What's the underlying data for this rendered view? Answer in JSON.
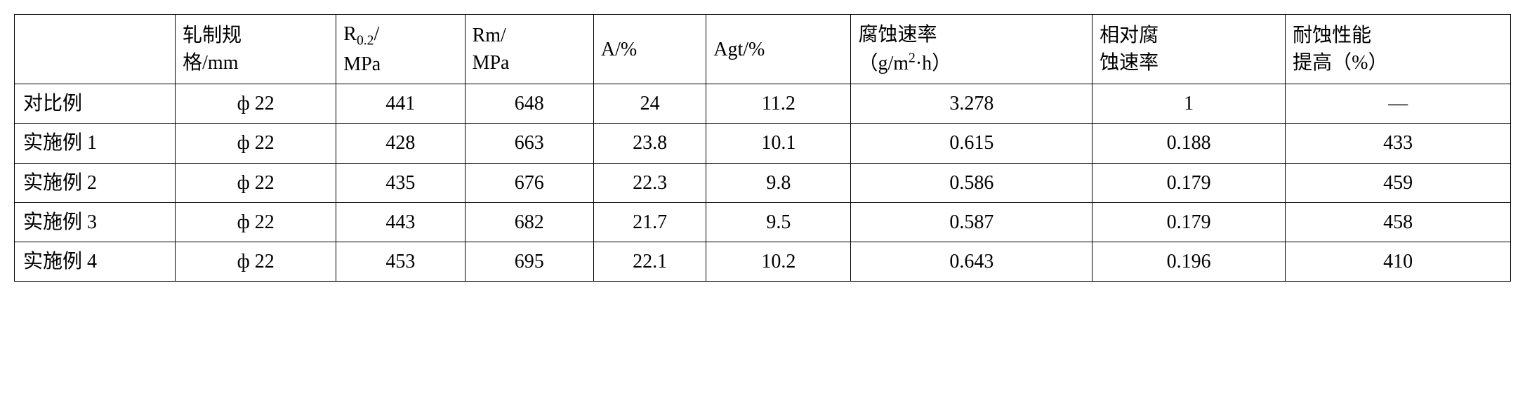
{
  "table": {
    "type": "table",
    "background_color": "#ffffff",
    "border_color": "#000000",
    "border_width": 1.5,
    "font_size": 28,
    "font_family": "SimSun",
    "columns": [
      {
        "key": "label",
        "header": "",
        "width_pct": 10,
        "align": "left"
      },
      {
        "key": "spec",
        "header_html": "轧制规<br>格/mm",
        "width_pct": 10,
        "align": "center"
      },
      {
        "key": "r02",
        "header_html": "R<sub>0.2</sub>/<br>MPa",
        "width_pct": 8,
        "align": "center"
      },
      {
        "key": "rm",
        "header_html": "Rm/<br>MPa",
        "width_pct": 8,
        "align": "center"
      },
      {
        "key": "a",
        "header": "A/%",
        "width_pct": 7,
        "align": "center"
      },
      {
        "key": "agt",
        "header": "Agt/%",
        "width_pct": 9,
        "align": "center"
      },
      {
        "key": "corr_rate",
        "header_html": "腐蚀速率<br>（g/m<sup>2</sup>·h）",
        "width_pct": 15,
        "align": "center"
      },
      {
        "key": "rel_corr",
        "header_html": "相对腐<br>蚀速率",
        "width_pct": 12,
        "align": "center"
      },
      {
        "key": "impr",
        "header_html": "耐蚀性能<br>提高（%）",
        "width_pct": 14,
        "align": "center"
      }
    ],
    "rows": [
      {
        "label": "对比例",
        "spec": "ф 22",
        "r02": "441",
        "rm": "648",
        "a": "24",
        "agt": "11.2",
        "corr_rate": "3.278",
        "rel_corr": "1",
        "impr": "—"
      },
      {
        "label": "实施例 1",
        "spec": "ф 22",
        "r02": "428",
        "rm": "663",
        "a": "23.8",
        "agt": "10.1",
        "corr_rate": "0.615",
        "rel_corr": "0.188",
        "impr": "433"
      },
      {
        "label": "实施例 2",
        "spec": "ф 22",
        "r02": "435",
        "rm": "676",
        "a": "22.3",
        "agt": "9.8",
        "corr_rate": "0.586",
        "rel_corr": "0.179",
        "impr": "459"
      },
      {
        "label": "实施例 3",
        "spec": "ф 22",
        "r02": "443",
        "rm": "682",
        "a": "21.7",
        "agt": "9.5",
        "corr_rate": "0.587",
        "rel_corr": "0.179",
        "impr": "458"
      },
      {
        "label": "实施例 4",
        "spec": "ф 22",
        "r02": "453",
        "rm": "695",
        "a": "22.1",
        "agt": "10.2",
        "corr_rate": "0.643",
        "rel_corr": "0.196",
        "impr": "410"
      }
    ]
  }
}
